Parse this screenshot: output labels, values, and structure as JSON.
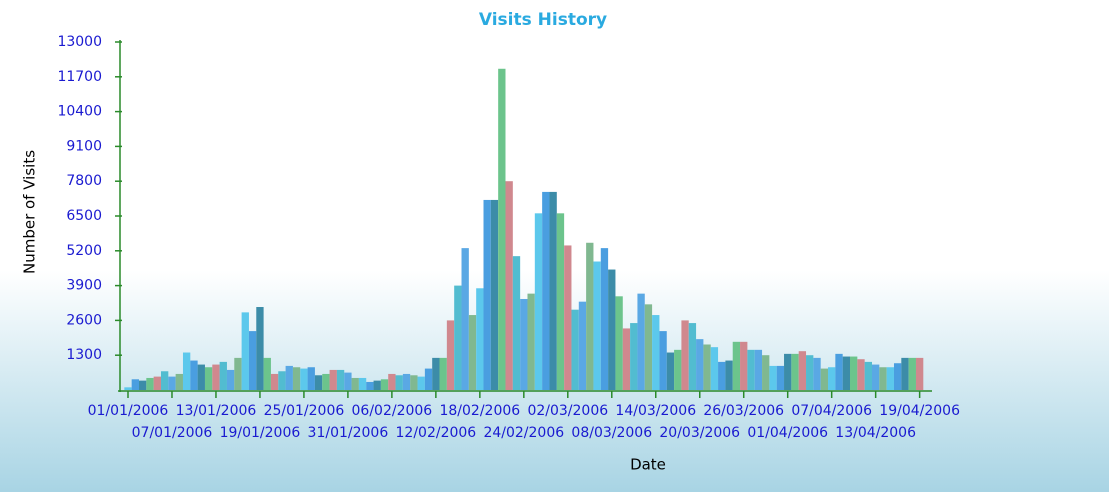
{
  "chart_data": {
    "type": "bar",
    "title": "Visits History",
    "x_label": "Date",
    "y_label": "Number of Visits",
    "categories": [
      "01/01/2006",
      null,
      null,
      null,
      null,
      null,
      "07/01/2006",
      null,
      null,
      null,
      null,
      null,
      "13/01/2006",
      null,
      null,
      null,
      null,
      null,
      "19/01/2006",
      null,
      null,
      null,
      null,
      null,
      "25/01/2006",
      null,
      null,
      null,
      null,
      null,
      "31/01/2006",
      null,
      null,
      null,
      null,
      null,
      "06/02/2006",
      null,
      null,
      null,
      null,
      null,
      "12/02/2006",
      null,
      null,
      null,
      null,
      null,
      "18/02/2006",
      null,
      null,
      null,
      null,
      null,
      "24/02/2006",
      null,
      null,
      null,
      null,
      null,
      "02/03/2006",
      null,
      null,
      null,
      null,
      null,
      "08/03/2006",
      null,
      null,
      null,
      null,
      null,
      "14/03/2006",
      null,
      null,
      null,
      null,
      null,
      "20/03/2006",
      null,
      null,
      null,
      null,
      null,
      "26/03/2006",
      null,
      null,
      null,
      null,
      null,
      "01/04/2006",
      null,
      null,
      null,
      null,
      null,
      "07/04/2006",
      null,
      null,
      null,
      null,
      null,
      "13/04/2006",
      null,
      null,
      null,
      null,
      null,
      "19/04/2006"
    ],
    "values": [
      100,
      400,
      350,
      450,
      500,
      700,
      500,
      600,
      1400,
      1100,
      950,
      850,
      950,
      1050,
      750,
      1200,
      2900,
      2200,
      3100,
      1200,
      600,
      700,
      900,
      850,
      800,
      850,
      550,
      600,
      750,
      750,
      650,
      450,
      450,
      300,
      350,
      400,
      600,
      550,
      600,
      550,
      500,
      800,
      1200,
      1200,
      2600,
      3900,
      5300,
      2800,
      3800,
      7100,
      7100,
      12000,
      7800,
      5000,
      3400,
      3600,
      6600,
      7400,
      7400,
      6600,
      5400,
      3000,
      3300,
      5500,
      4800,
      5300,
      4500,
      3500,
      2300,
      2500,
      3600,
      3200,
      2800,
      2200,
      1400,
      1500,
      2600,
      2500,
      1900,
      1700,
      1600,
      1050,
      1100,
      1800,
      1800,
      1500,
      1500,
      1300,
      900,
      900,
      1350,
      1350,
      1450,
      1300,
      1200,
      800,
      850,
      1350,
      1250,
      1250,
      1150,
      1050,
      950,
      850,
      850,
      1000,
      1200,
      1200,
      1200
    ],
    "colors": [
      "#5cc8ec",
      "#4a9ee0",
      "#3c8ca8",
      "#6cc48c",
      "#d0888e",
      "#52bcd0",
      "#5aa8e4",
      "#80b890"
    ],
    "ylim": [
      0,
      13000
    ],
    "yticks": [
      1300,
      2600,
      3900,
      5200,
      6500,
      7800,
      9100,
      10400,
      11700,
      13000
    ]
  }
}
